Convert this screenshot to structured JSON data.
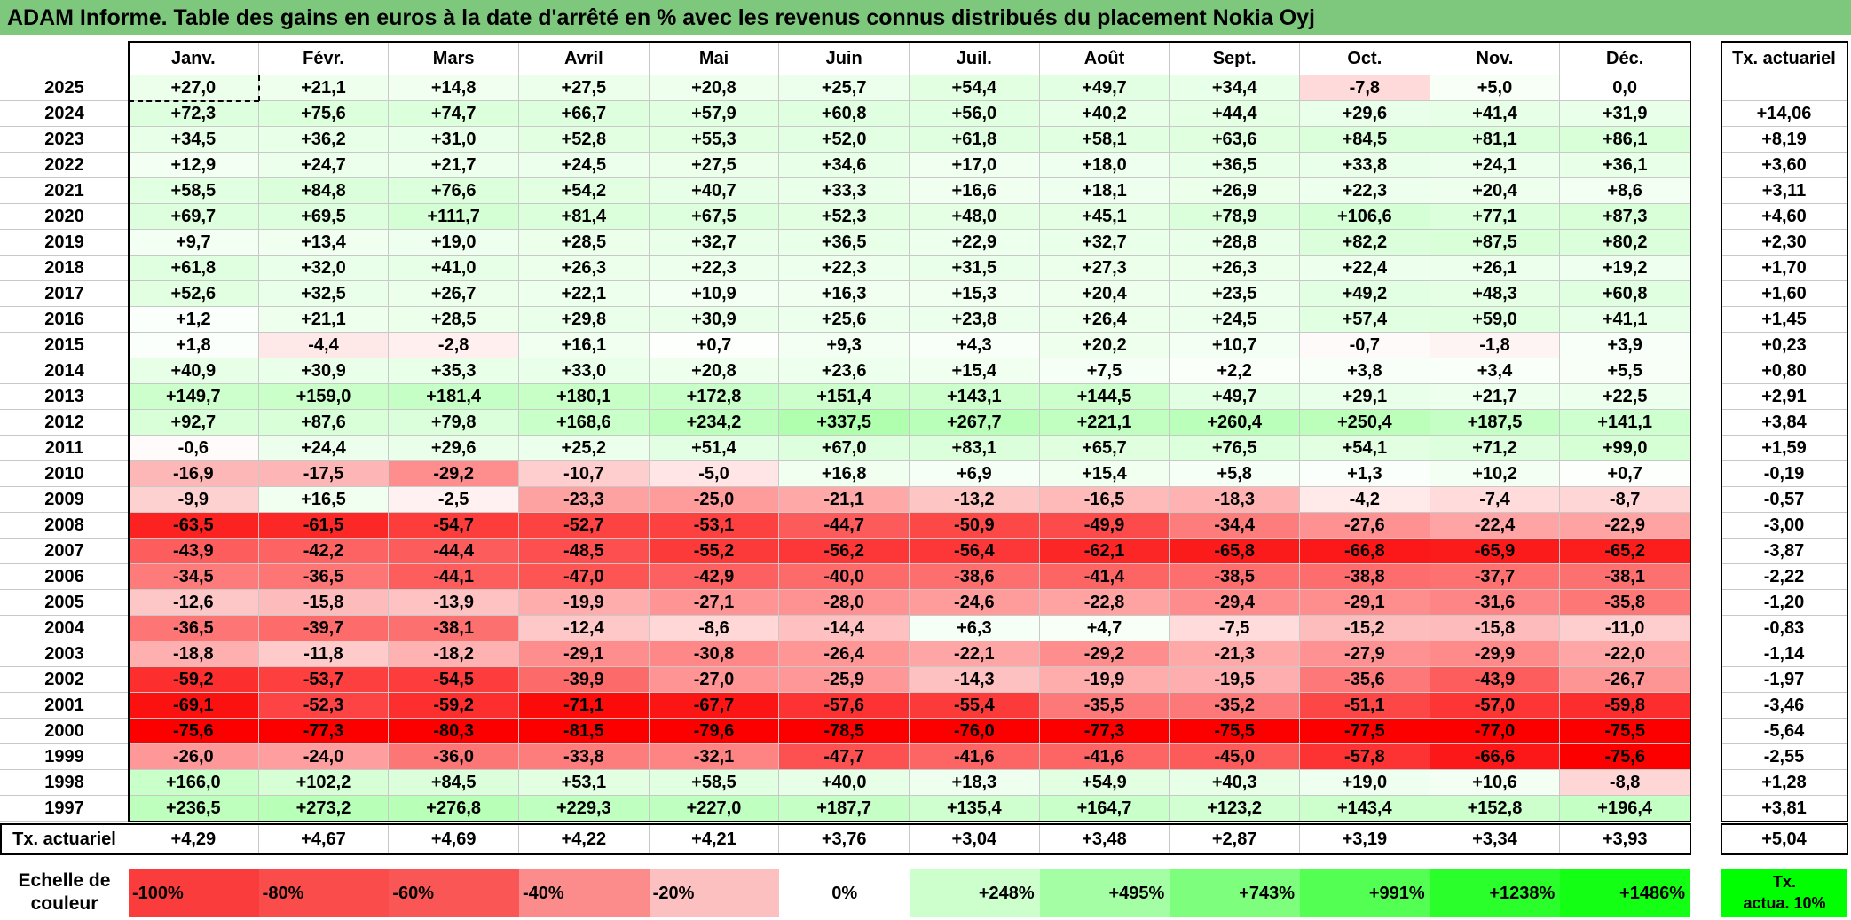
{
  "title": "ADAM Informe. Table des gains en euros à la date d'arrêté en % avec les revenus connus distribués du placement Nokia Oyj",
  "months": [
    "Janv.",
    "Févr.",
    "Mars",
    "Avril",
    "Mai",
    "Juin",
    "Juil.",
    "Août",
    "Sept.",
    "Oct.",
    "Nov.",
    "Déc."
  ],
  "tx_header": "Tx. actuariel",
  "rows": [
    {
      "year": "2025",
      "values": [
        "+27,0",
        "+21,1",
        "+14,8",
        "+27,5",
        "+20,8",
        "+25,7",
        "+54,4",
        "+49,7",
        "+34,4",
        "-7,8",
        "+5,0",
        "0,0"
      ],
      "tx": ""
    },
    {
      "year": "2024",
      "values": [
        "+72,3",
        "+75,6",
        "+74,7",
        "+66,7",
        "+57,9",
        "+60,8",
        "+56,0",
        "+40,2",
        "+44,4",
        "+29,6",
        "+41,4",
        "+31,9"
      ],
      "tx": "+14,06"
    },
    {
      "year": "2023",
      "values": [
        "+34,5",
        "+36,2",
        "+31,0",
        "+52,8",
        "+55,3",
        "+52,0",
        "+61,8",
        "+58,1",
        "+63,6",
        "+84,5",
        "+81,1",
        "+86,1"
      ],
      "tx": "+8,19"
    },
    {
      "year": "2022",
      "values": [
        "+12,9",
        "+24,7",
        "+21,7",
        "+24,5",
        "+27,5",
        "+34,6",
        "+17,0",
        "+18,0",
        "+36,5",
        "+33,8",
        "+24,1",
        "+36,1"
      ],
      "tx": "+3,60"
    },
    {
      "year": "2021",
      "values": [
        "+58,5",
        "+84,8",
        "+76,6",
        "+54,2",
        "+40,7",
        "+33,3",
        "+16,6",
        "+18,1",
        "+26,9",
        "+22,3",
        "+20,4",
        "+8,6"
      ],
      "tx": "+3,11"
    },
    {
      "year": "2020",
      "values": [
        "+69,7",
        "+69,5",
        "+111,7",
        "+81,4",
        "+67,5",
        "+52,3",
        "+48,0",
        "+45,1",
        "+78,9",
        "+106,6",
        "+77,1",
        "+87,3"
      ],
      "tx": "+4,60"
    },
    {
      "year": "2019",
      "values": [
        "+9,7",
        "+13,4",
        "+19,0",
        "+28,5",
        "+32,7",
        "+36,5",
        "+22,9",
        "+32,7",
        "+28,8",
        "+82,2",
        "+87,5",
        "+80,2"
      ],
      "tx": "+2,30"
    },
    {
      "year": "2018",
      "values": [
        "+61,8",
        "+32,0",
        "+41,0",
        "+26,3",
        "+22,3",
        "+22,3",
        "+31,5",
        "+27,3",
        "+26,3",
        "+22,4",
        "+26,1",
        "+19,2"
      ],
      "tx": "+1,70"
    },
    {
      "year": "2017",
      "values": [
        "+52,6",
        "+32,5",
        "+26,7",
        "+22,1",
        "+10,9",
        "+16,3",
        "+15,3",
        "+20,4",
        "+23,5",
        "+49,2",
        "+48,3",
        "+60,8"
      ],
      "tx": "+1,60"
    },
    {
      "year": "2016",
      "values": [
        "+1,2",
        "+21,1",
        "+28,5",
        "+29,8",
        "+30,9",
        "+25,6",
        "+23,8",
        "+26,4",
        "+24,5",
        "+57,4",
        "+59,0",
        "+41,1"
      ],
      "tx": "+1,45"
    },
    {
      "year": "2015",
      "values": [
        "+1,8",
        "-4,4",
        "-2,8",
        "+16,1",
        "+0,7",
        "+9,3",
        "+4,3",
        "+20,2",
        "+10,7",
        "-0,7",
        "-1,8",
        "+3,9"
      ],
      "tx": "+0,23"
    },
    {
      "year": "2014",
      "values": [
        "+40,9",
        "+30,9",
        "+35,3",
        "+33,0",
        "+20,8",
        "+23,6",
        "+15,4",
        "+7,5",
        "+2,2",
        "+3,8",
        "+3,4",
        "+5,5"
      ],
      "tx": "+0,80"
    },
    {
      "year": "2013",
      "values": [
        "+149,7",
        "+159,0",
        "+181,4",
        "+180,1",
        "+172,8",
        "+151,4",
        "+143,1",
        "+144,5",
        "+49,7",
        "+29,1",
        "+21,7",
        "+22,5"
      ],
      "tx": "+2,91"
    },
    {
      "year": "2012",
      "values": [
        "+92,7",
        "+87,6",
        "+79,8",
        "+168,6",
        "+234,2",
        "+337,5",
        "+267,7",
        "+221,1",
        "+260,4",
        "+250,4",
        "+187,5",
        "+141,1"
      ],
      "tx": "+3,84"
    },
    {
      "year": "2011",
      "values": [
        "-0,6",
        "+24,4",
        "+29,6",
        "+25,2",
        "+51,4",
        "+67,0",
        "+83,1",
        "+65,7",
        "+76,5",
        "+54,1",
        "+71,2",
        "+99,0"
      ],
      "tx": "+1,59"
    },
    {
      "year": "2010",
      "values": [
        "-16,9",
        "-17,5",
        "-29,2",
        "-10,7",
        "-5,0",
        "+16,8",
        "+6,9",
        "+15,4",
        "+5,8",
        "+1,3",
        "+10,2",
        "+0,7"
      ],
      "tx": "-0,19"
    },
    {
      "year": "2009",
      "values": [
        "-9,9",
        "+16,5",
        "-2,5",
        "-23,3",
        "-25,0",
        "-21,1",
        "-13,2",
        "-16,5",
        "-18,3",
        "-4,2",
        "-7,4",
        "-8,7"
      ],
      "tx": "-0,57"
    },
    {
      "year": "2008",
      "values": [
        "-63,5",
        "-61,5",
        "-54,7",
        "-52,7",
        "-53,1",
        "-44,7",
        "-50,9",
        "-49,9",
        "-34,4",
        "-27,6",
        "-22,4",
        "-22,9"
      ],
      "tx": "-3,00"
    },
    {
      "year": "2007",
      "values": [
        "-43,9",
        "-42,2",
        "-44,4",
        "-48,5",
        "-55,2",
        "-56,2",
        "-56,4",
        "-62,1",
        "-65,8",
        "-66,8",
        "-65,9",
        "-65,2"
      ],
      "tx": "-3,87"
    },
    {
      "year": "2006",
      "values": [
        "-34,5",
        "-36,5",
        "-44,1",
        "-47,0",
        "-42,9",
        "-40,0",
        "-38,6",
        "-41,4",
        "-38,5",
        "-38,8",
        "-37,7",
        "-38,1"
      ],
      "tx": "-2,22"
    },
    {
      "year": "2005",
      "values": [
        "-12,6",
        "-15,8",
        "-13,9",
        "-19,9",
        "-27,1",
        "-28,0",
        "-24,6",
        "-22,8",
        "-29,4",
        "-29,1",
        "-31,6",
        "-35,8"
      ],
      "tx": "-1,20"
    },
    {
      "year": "2004",
      "values": [
        "-36,5",
        "-39,7",
        "-38,1",
        "-12,4",
        "-8,6",
        "-14,4",
        "+6,3",
        "+4,7",
        "-7,5",
        "-15,2",
        "-15,8",
        "-11,0"
      ],
      "tx": "-0,83"
    },
    {
      "year": "2003",
      "values": [
        "-18,8",
        "-11,8",
        "-18,2",
        "-29,1",
        "-30,8",
        "-26,4",
        "-22,1",
        "-29,2",
        "-21,3",
        "-27,9",
        "-29,9",
        "-22,0"
      ],
      "tx": "-1,14"
    },
    {
      "year": "2002",
      "values": [
        "-59,2",
        "-53,7",
        "-54,5",
        "-39,9",
        "-27,0",
        "-25,9",
        "-14,3",
        "-19,9",
        "-19,5",
        "-35,6",
        "-43,9",
        "-26,7"
      ],
      "tx": "-1,97"
    },
    {
      "year": "2001",
      "values": [
        "-69,1",
        "-52,3",
        "-59,2",
        "-71,1",
        "-67,7",
        "-57,6",
        "-55,4",
        "-35,5",
        "-35,2",
        "-51,1",
        "-57,0",
        "-59,8"
      ],
      "tx": "-3,46"
    },
    {
      "year": "2000",
      "values": [
        "-75,6",
        "-77,3",
        "-80,3",
        "-81,5",
        "-79,6",
        "-78,5",
        "-76,0",
        "-77,3",
        "-75,5",
        "-77,5",
        "-77,0",
        "-75,5"
      ],
      "tx": "-5,64"
    },
    {
      "year": "1999",
      "values": [
        "-26,0",
        "-24,0",
        "-36,0",
        "-33,8",
        "-32,1",
        "-47,7",
        "-41,6",
        "-41,6",
        "-45,0",
        "-57,8",
        "-66,6",
        "-75,6"
      ],
      "tx": "-2,55"
    },
    {
      "year": "1998",
      "values": [
        "+166,0",
        "+102,2",
        "+84,5",
        "+53,1",
        "+58,5",
        "+40,0",
        "+18,3",
        "+54,9",
        "+40,3",
        "+19,0",
        "+10,6",
        "-8,8"
      ],
      "tx": "+1,28"
    },
    {
      "year": "1997",
      "values": [
        "+236,5",
        "+273,2",
        "+276,8",
        "+229,3",
        "+227,0",
        "+187,7",
        "+135,4",
        "+164,7",
        "+123,2",
        "+143,4",
        "+152,8",
        "+196,4"
      ],
      "tx": "+3,81"
    }
  ],
  "footer": {
    "label": "Tx. actuariel",
    "values": [
      "+4,29",
      "+4,67",
      "+4,69",
      "+4,22",
      "+4,21",
      "+3,76",
      "+3,04",
      "+3,48",
      "+2,87",
      "+3,19",
      "+3,34",
      "+3,93"
    ],
    "total": "+5,04"
  },
  "legend": {
    "label_line1": "Echelle de",
    "label_line2": "couleur",
    "items": [
      {
        "text": "-100%",
        "color": "#fb3c3c"
      },
      {
        "text": "-80%",
        "color": "#fb4c4c"
      },
      {
        "text": "-60%",
        "color": "#fb5656"
      },
      {
        "text": "-40%",
        "color": "#fc8c8c"
      },
      {
        "text": "-20%",
        "color": "#fdc0c0"
      },
      {
        "text": "0%",
        "color": "#ffffff"
      },
      {
        "text": "+248%",
        "color": "#cdffcd"
      },
      {
        "text": "+495%",
        "color": "#a4ffa4"
      },
      {
        "text": "+743%",
        "color": "#7dff7d"
      },
      {
        "text": "+991%",
        "color": "#52ff52"
      },
      {
        "text": "+1238%",
        "color": "#2bff2b"
      },
      {
        "text": "+1486%",
        "color": "#13ff13"
      }
    ],
    "last_line1": "Tx.",
    "last_line2": "actua. 10%",
    "last_color": "#00ff00"
  },
  "colors": {
    "title_bg": "#7ec87e",
    "grid": "#c8c8c8"
  }
}
